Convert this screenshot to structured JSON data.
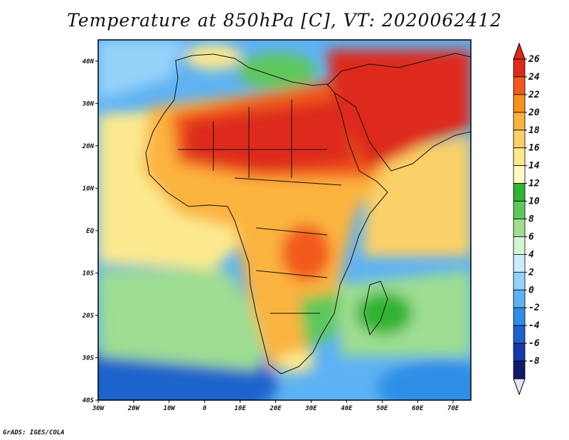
{
  "title": "Temperature at 850hPa [C], VT: 2020062412",
  "footer": "GrADS: IGES/COLA",
  "map": {
    "lon_labels": [
      "30W",
      "20W",
      "10W",
      "0",
      "10E",
      "20E",
      "30E",
      "40E",
      "50E",
      "60E",
      "70E"
    ],
    "lat_labels": [
      "40N",
      "30N",
      "20N",
      "10N",
      "EQ",
      "10S",
      "20S",
      "30S",
      "40S"
    ],
    "lon_range": [
      -30,
      75
    ],
    "lat_range": [
      -40,
      45
    ]
  },
  "colorbar": {
    "labels": [
      "26",
      "24",
      "22",
      "20",
      "18",
      "16",
      "14",
      "12",
      "10",
      "8",
      "6",
      "4",
      "2",
      "0",
      "-2",
      "-4",
      "-6",
      "-8"
    ],
    "colors": [
      "#dd2a1a",
      "#f25a1c",
      "#f7901e",
      "#fbb33f",
      "#fcd068",
      "#fce98e",
      "#fffbc2",
      "#31b336",
      "#5ec85a",
      "#9edd92",
      "#d4f5d4",
      "#ccebff",
      "#96d1fa",
      "#5eb2f3",
      "#2f8ee6",
      "#1e63cc",
      "#1738a6",
      "#101b6b"
    ]
  }
}
